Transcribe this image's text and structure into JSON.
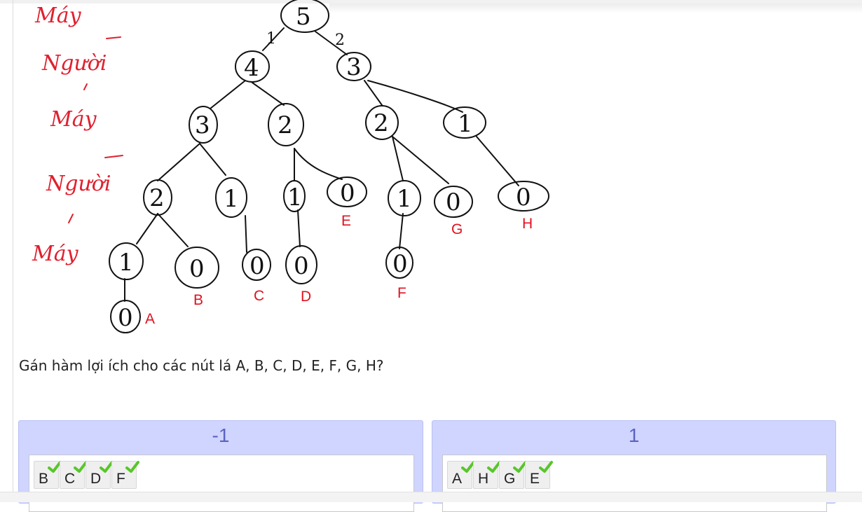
{
  "figure": {
    "ply_labels": [
      "Máy",
      "Người",
      "Máy",
      "Người",
      "Máy"
    ],
    "node_values": {
      "root": "5",
      "n4": "4",
      "n3": "3",
      "n4a": "3",
      "n4b": "2",
      "n3a": "2",
      "n3b": "1",
      "l2": "2",
      "l1a": "1",
      "l1b": "1",
      "l0e": "0",
      "l1c": "1",
      "l0g": "0",
      "l0h": "0",
      "l1d": "1",
      "l0b": "0",
      "l0c": "0",
      "l0d": "0",
      "l0f": "0",
      "l0a": "0"
    },
    "edge_labels": [
      "1",
      "2"
    ],
    "leaf_labels": [
      "A",
      "B",
      "C",
      "D",
      "E",
      "F",
      "G",
      "H"
    ]
  },
  "question": "Gán hàm lợi ích cho các nút lá A, B, C, D, E, F, G, H?",
  "groups": [
    {
      "value": "-1",
      "items": [
        "B",
        "C",
        "D",
        "F"
      ]
    },
    {
      "value": "1",
      "items": [
        "A",
        "H",
        "G",
        "E"
      ]
    }
  ],
  "colors": {
    "ink": "#111111",
    "annotation_red": "#e0121f",
    "group_bg": "#cfd5ff",
    "group_value_text": "#5b63c2",
    "check_green": "#58c62a"
  },
  "icons": [
    "check-icon"
  ]
}
